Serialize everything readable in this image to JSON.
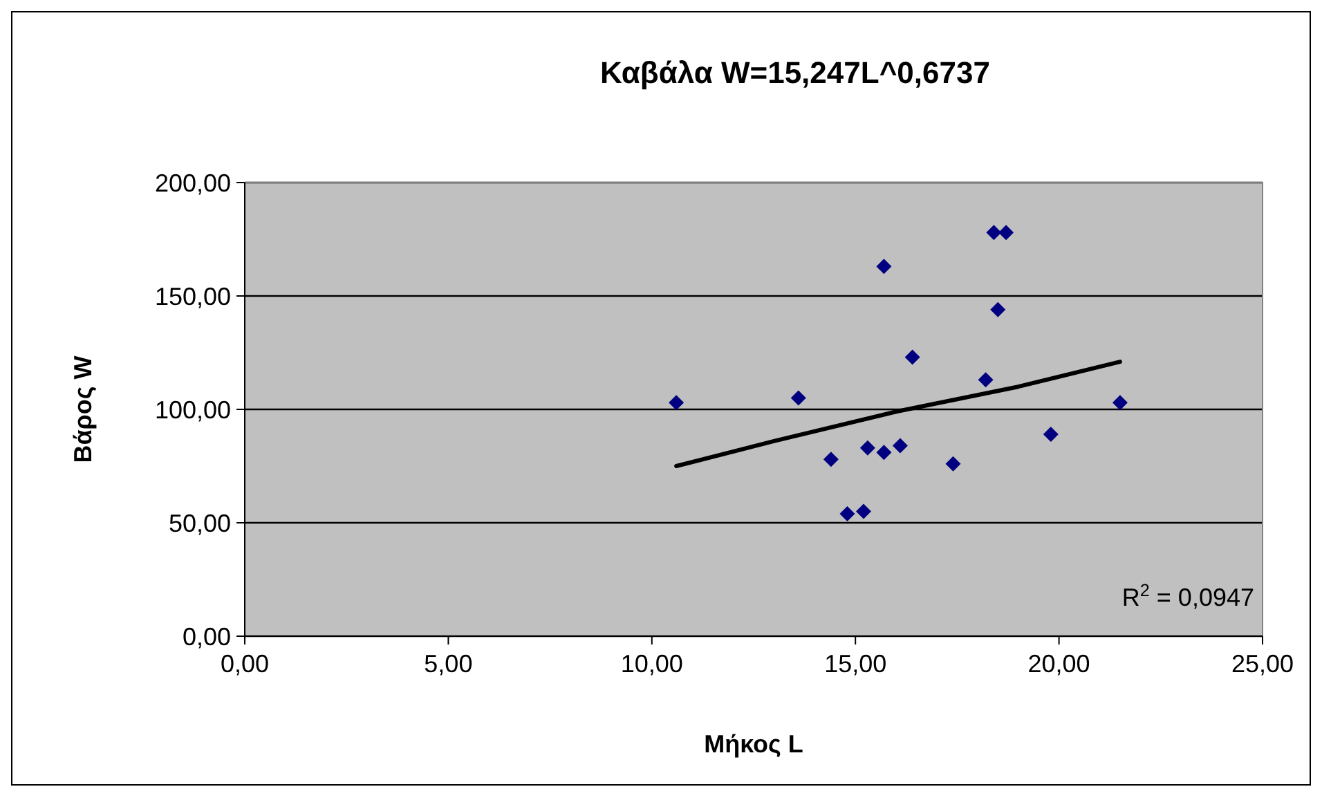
{
  "chart_data": {
    "type": "scatter",
    "title": "Καβάλα W=15,247L^0,6737",
    "xlabel": "Μήκος L",
    "ylabel": "Βάρος W",
    "xlim": [
      0,
      25
    ],
    "xticks": [
      {
        "value": 0,
        "label": "0,00"
      },
      {
        "value": 5,
        "label": "5,00"
      },
      {
        "value": 10,
        "label": "10,00"
      },
      {
        "value": 15,
        "label": "15,00"
      },
      {
        "value": 20,
        "label": "20,00"
      },
      {
        "value": 25,
        "label": "25,00"
      }
    ],
    "ylim": [
      0,
      200
    ],
    "yticks": [
      {
        "value": 0,
        "label": "0,00"
      },
      {
        "value": 50,
        "label": "50,00"
      },
      {
        "value": 100,
        "label": "100,00"
      },
      {
        "value": 150,
        "label": "150,00"
      },
      {
        "value": 200,
        "label": "200,00"
      }
    ],
    "grid": "y",
    "marker": "diamond",
    "series": [
      {
        "type": "scatter",
        "color": "#000080",
        "x": [
          10.6,
          13.6,
          14.4,
          14.8,
          15.2,
          15.3,
          15.7,
          15.7,
          16.1,
          16.4,
          17.4,
          18.2,
          18.4,
          18.7,
          18.5,
          19.8,
          21.5
        ],
        "values": [
          103,
          105,
          78,
          54,
          55,
          83,
          81,
          163,
          84,
          123,
          76,
          113,
          178,
          178,
          144,
          89,
          103
        ]
      },
      {
        "type": "line",
        "marker": "none",
        "line_style": "solid",
        "color": "#000000",
        "x": [
          10.6,
          13,
          16,
          19,
          21.5
        ],
        "values": [
          75,
          86,
          99,
          110,
          121
        ]
      }
    ],
    "annotations": [
      "R$^{2}$ = 0,0947"
    ]
  }
}
